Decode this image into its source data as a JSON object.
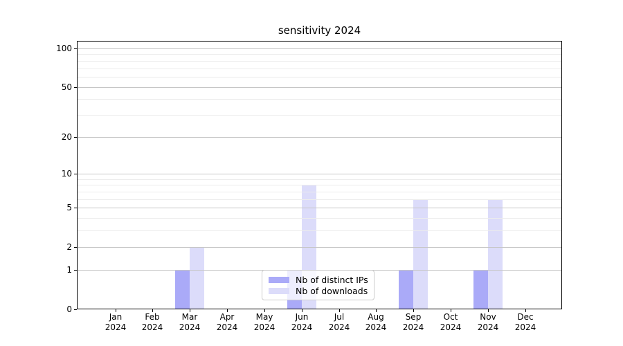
{
  "chart_data": {
    "type": "bar",
    "title": "sensitivity 2024",
    "x_categories": [
      "Jan",
      "Feb",
      "Mar",
      "Apr",
      "May",
      "Jun",
      "Jul",
      "Aug",
      "Sep",
      "Oct",
      "Nov",
      "Dec"
    ],
    "x_year_label": "2024",
    "series": [
      {
        "name": "Nb of distinct IPs",
        "color": "#aaaaf8",
        "values": [
          0,
          0,
          1,
          0,
          0,
          1,
          0,
          0,
          1,
          0,
          1,
          0
        ]
      },
      {
        "name": "Nb of downloads",
        "color": "#dcdcfa",
        "values": [
          0,
          0,
          2,
          0,
          0,
          8,
          0,
          0,
          6,
          0,
          6,
          0
        ]
      }
    ],
    "yscale": "log1p",
    "ylim": [
      0,
      115
    ],
    "y_major_ticks": [
      0,
      1,
      2,
      5,
      10,
      20,
      50,
      100
    ],
    "y_minor_ticks": [
      3,
      4,
      6,
      7,
      8,
      9,
      30,
      40,
      60,
      70,
      80,
      90
    ],
    "grid": true,
    "legend_position": "lower-center",
    "colors": {
      "major_grid": "#c6c6c6",
      "minor_grid": "#ececec",
      "axis": "#000000"
    }
  }
}
